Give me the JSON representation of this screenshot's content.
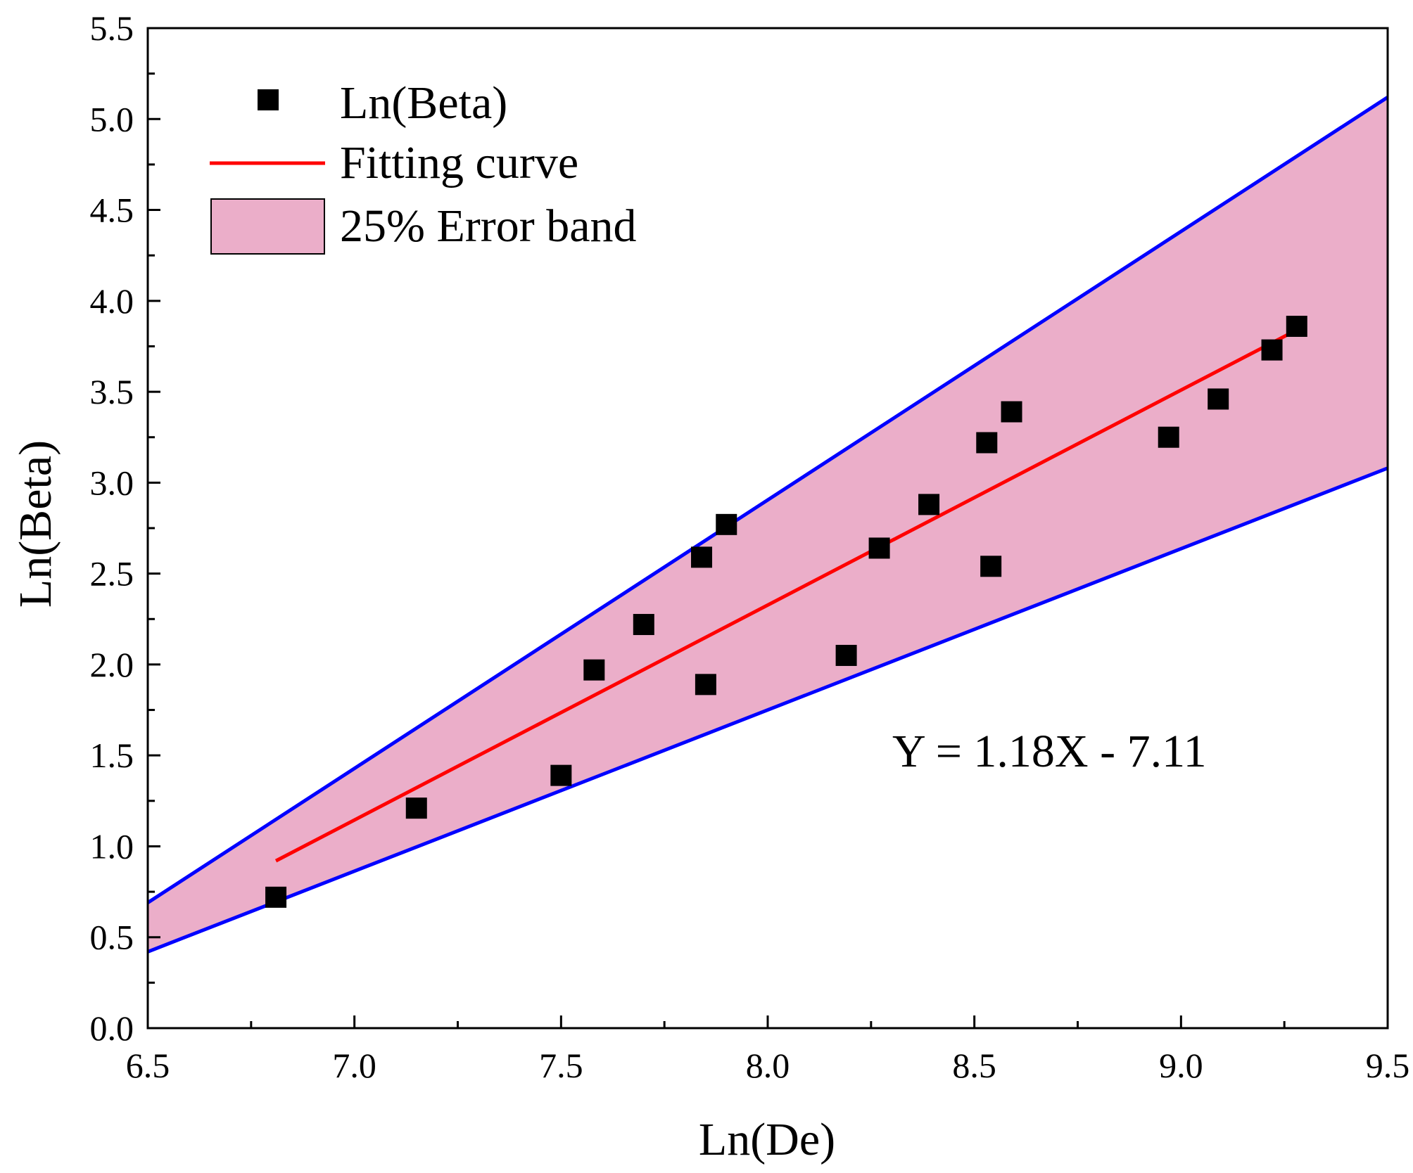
{
  "chart_data": {
    "type": "scatter",
    "xlabel": "Ln(De)",
    "ylabel": "Ln(Beta)",
    "xlim": [
      6.5,
      9.5
    ],
    "ylim": [
      0.0,
      5.5
    ],
    "xticks": [
      "6.5",
      "7.0",
      "7.5",
      "8.0",
      "8.5",
      "9.0",
      "9.5"
    ],
    "yticks": [
      "0.0",
      "0.5",
      "1.0",
      "1.5",
      "2.0",
      "2.5",
      "3.0",
      "3.5",
      "4.0",
      "4.5",
      "5.0",
      "5.5"
    ],
    "grid": false,
    "legend_position": "top-left",
    "series": [
      {
        "name": "Ln(Beta)",
        "kind": "scatter",
        "marker": "square",
        "color": "#000000",
        "points": [
          [
            6.81,
            0.72
          ],
          [
            7.15,
            1.21
          ],
          [
            7.5,
            1.39
          ],
          [
            7.58,
            1.97
          ],
          [
            7.7,
            2.22
          ],
          [
            7.84,
            2.59
          ],
          [
            7.85,
            1.89
          ],
          [
            7.9,
            2.77
          ],
          [
            8.19,
            2.05
          ],
          [
            8.27,
            2.64
          ],
          [
            8.39,
            2.88
          ],
          [
            8.53,
            3.22
          ],
          [
            8.54,
            2.54
          ],
          [
            8.59,
            3.39
          ],
          [
            8.97,
            3.25
          ],
          [
            9.09,
            3.46
          ],
          [
            9.22,
            3.73
          ],
          [
            9.28,
            3.86
          ]
        ]
      },
      {
        "name": "Fitting curve",
        "kind": "line",
        "color": "#ff0000",
        "points": [
          [
            6.81,
            0.92
          ],
          [
            9.28,
            3.84
          ]
        ]
      },
      {
        "name": "25% Error band",
        "kind": "band",
        "fill": "#ebaec9",
        "edge_color": "#0000ff",
        "upper": [
          [
            6.5,
            0.69
          ],
          [
            9.5,
            5.12
          ]
        ],
        "lower": [
          [
            6.5,
            0.42
          ],
          [
            9.5,
            3.08
          ]
        ]
      }
    ],
    "annotation": "Y = 1.18X - 7.11"
  }
}
